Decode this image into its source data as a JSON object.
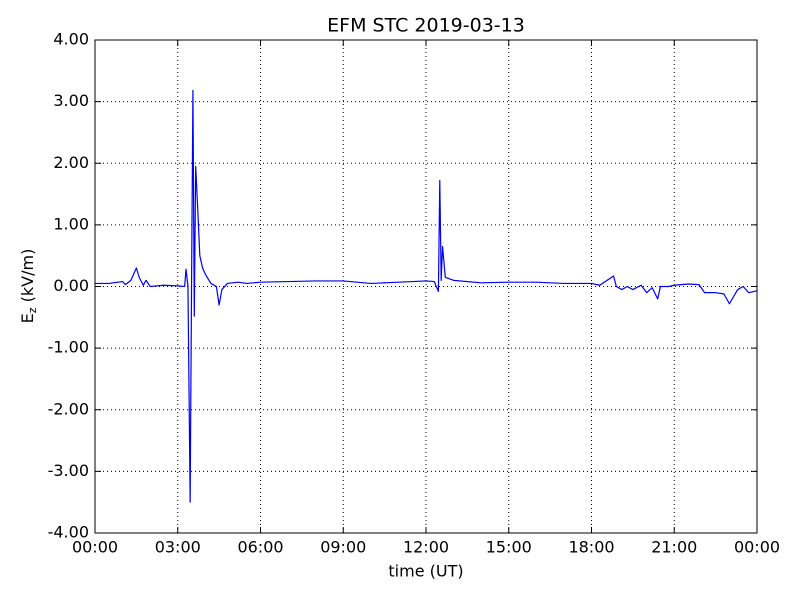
{
  "chart_data": {
    "type": "line",
    "title": "EFM STC    2019-03-13",
    "xlabel": "time (UT)",
    "ylabel_parts": [
      "E",
      "z",
      " (kV/m)"
    ],
    "color": "#0000ee",
    "grid": true,
    "xlim": [
      0,
      24
    ],
    "xticks": [
      {
        "value": 0,
        "label": "00:00"
      },
      {
        "value": 3,
        "label": "03:00"
      },
      {
        "value": 6,
        "label": "06:00"
      },
      {
        "value": 9,
        "label": "09:00"
      },
      {
        "value": 12,
        "label": "12:00"
      },
      {
        "value": 15,
        "label": "15:00"
      },
      {
        "value": 18,
        "label": "18:00"
      },
      {
        "value": 21,
        "label": "21:00"
      },
      {
        "value": 24,
        "label": "00:00"
      }
    ],
    "ylim": [
      -4,
      4
    ],
    "yticks": [
      {
        "value": -4,
        "label": "-4.00"
      },
      {
        "value": -3,
        "label": "-3.00"
      },
      {
        "value": -2,
        "label": "-2.00"
      },
      {
        "value": -1,
        "label": "-1.00"
      },
      {
        "value": 0,
        "label": "0.00"
      },
      {
        "value": 1,
        "label": "1.00"
      },
      {
        "value": 2,
        "label": "2.00"
      },
      {
        "value": 3,
        "label": "3.00"
      },
      {
        "value": 4,
        "label": "4.00"
      }
    ],
    "x": [
      0.0,
      0.5,
      1.0,
      1.1,
      1.3,
      1.5,
      1.6,
      1.75,
      1.85,
      2.0,
      2.5,
      3.0,
      3.25,
      3.3,
      3.37,
      3.45,
      3.5,
      3.55,
      3.6,
      3.65,
      3.72,
      3.8,
      3.9,
      4.0,
      4.2,
      4.4,
      4.5,
      4.6,
      4.8,
      5.2,
      5.5,
      6.0,
      7.0,
      8.0,
      9.0,
      10.0,
      11.0,
      12.0,
      12.3,
      12.45,
      12.5,
      12.55,
      12.6,
      12.7,
      13.0,
      14.0,
      15.0,
      16.0,
      17.0,
      18.0,
      18.3,
      18.8,
      18.9,
      19.1,
      19.3,
      19.5,
      19.8,
      20.0,
      20.2,
      20.4,
      20.5,
      20.8,
      21.0,
      21.5,
      21.9,
      22.1,
      22.5,
      22.8,
      23.0,
      23.3,
      23.5,
      23.7,
      24.0
    ],
    "values": [
      0.05,
      0.05,
      0.08,
      0.03,
      0.1,
      0.3,
      0.15,
      0.02,
      0.1,
      0.0,
      0.02,
      0.01,
      0.0,
      0.28,
      0.0,
      -3.5,
      0.0,
      3.18,
      -0.48,
      1.95,
      1.3,
      0.5,
      0.3,
      0.2,
      0.05,
      0.0,
      -0.3,
      -0.05,
      0.05,
      0.07,
      0.05,
      0.07,
      0.08,
      0.09,
      0.09,
      0.05,
      0.07,
      0.09,
      0.08,
      -0.08,
      1.72,
      0.1,
      0.65,
      0.15,
      0.1,
      0.06,
      0.07,
      0.07,
      0.05,
      0.05,
      0.02,
      0.17,
      0.0,
      -0.05,
      0.0,
      -0.05,
      0.02,
      -0.1,
      -0.02,
      -0.2,
      0.0,
      0.0,
      0.02,
      0.04,
      0.03,
      -0.1,
      -0.1,
      -0.12,
      -0.28,
      -0.05,
      0.0,
      -0.1,
      -0.07
    ]
  }
}
